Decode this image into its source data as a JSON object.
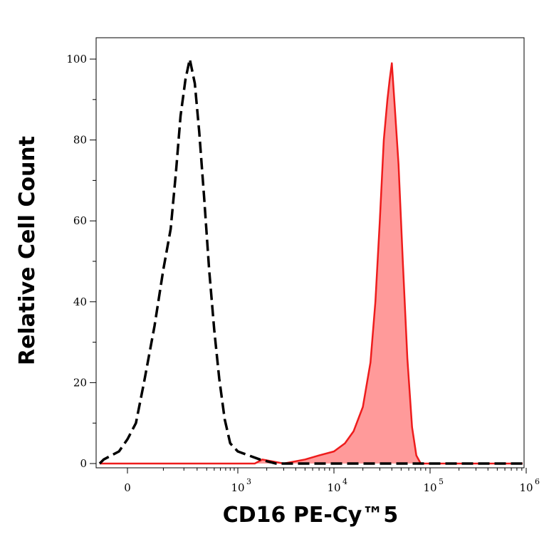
{
  "chart_data": {
    "type": "area",
    "xlabel": "CD16 PE-Cy™5",
    "ylabel": "Relative Cell Count",
    "x_scale": "biexponential",
    "x_ticks": [
      {
        "value": 0,
        "base": "0",
        "exp": ""
      },
      {
        "value": 1000,
        "base": "10",
        "exp": "3"
      },
      {
        "value": 10000,
        "base": "10",
        "exp": "4"
      },
      {
        "value": 100000,
        "base": "10",
        "exp": "5"
      },
      {
        "value": 1000000,
        "base": "10",
        "exp": "6"
      }
    ],
    "y_ticks": [
      0,
      20,
      40,
      60,
      80,
      100
    ],
    "ylim": [
      0,
      100
    ],
    "grid": false,
    "series": [
      {
        "style": "dashed",
        "color": "#000000",
        "fill": "none",
        "points": [
          [
            -150,
            0
          ],
          [
            -60,
            1
          ],
          [
            -20,
            3
          ],
          [
            0,
            6
          ],
          [
            20,
            10
          ],
          [
            40,
            20
          ],
          [
            70,
            34
          ],
          [
            100,
            48
          ],
          [
            130,
            58
          ],
          [
            155,
            72
          ],
          [
            180,
            86
          ],
          [
            210,
            95
          ],
          [
            240,
            100
          ],
          [
            280,
            94
          ],
          [
            320,
            82
          ],
          [
            370,
            66
          ],
          [
            430,
            48
          ],
          [
            500,
            33
          ],
          [
            580,
            21
          ],
          [
            680,
            11
          ],
          [
            800,
            5
          ],
          [
            1000,
            3
          ],
          [
            1300,
            2
          ],
          [
            1700,
            1
          ],
          [
            2500,
            0
          ],
          [
            10000,
            0
          ],
          [
            1000000,
            0
          ]
        ]
      },
      {
        "style": "solid",
        "color": "#ee1c1c",
        "fill": "#ff9a9a",
        "points": [
          [
            -150,
            0
          ],
          [
            1500,
            0
          ],
          [
            1800,
            1
          ],
          [
            3000,
            0
          ],
          [
            5000,
            1
          ],
          [
            7000,
            2
          ],
          [
            10000,
            3
          ],
          [
            13000,
            5
          ],
          [
            16000,
            8
          ],
          [
            20000,
            14
          ],
          [
            24000,
            25
          ],
          [
            27000,
            40
          ],
          [
            30000,
            60
          ],
          [
            33000,
            80
          ],
          [
            36000,
            90
          ],
          [
            38000,
            95
          ],
          [
            40000,
            99
          ],
          [
            43000,
            88
          ],
          [
            47000,
            74
          ],
          [
            52000,
            50
          ],
          [
            58000,
            26
          ],
          [
            65000,
            9
          ],
          [
            72000,
            2
          ],
          [
            80000,
            0
          ],
          [
            1000000,
            0
          ]
        ]
      }
    ]
  }
}
